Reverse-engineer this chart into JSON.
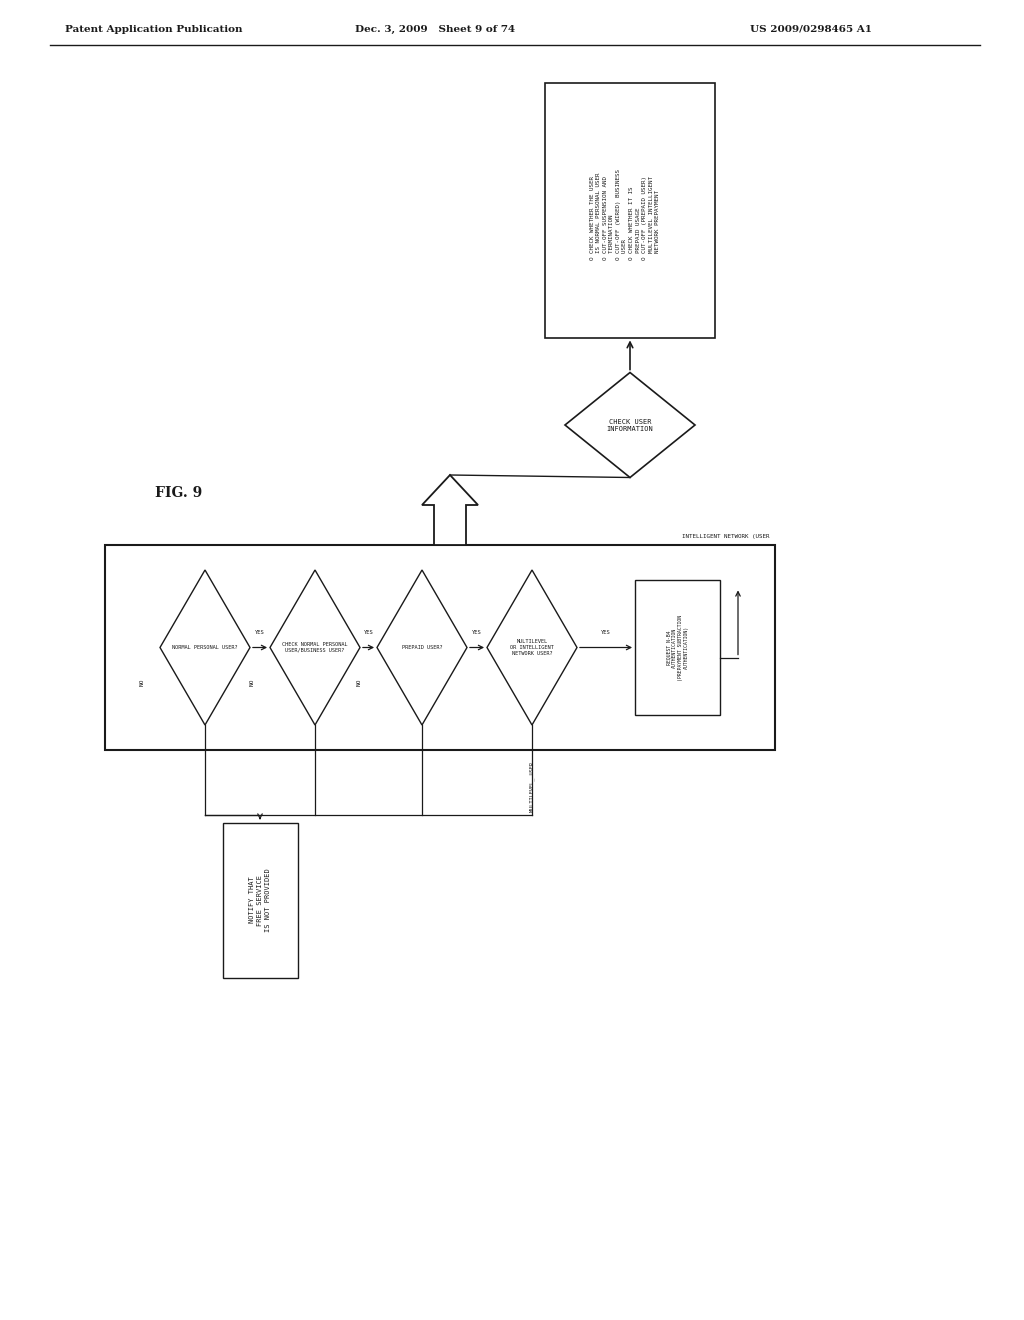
{
  "header_left": "Patent Application Publication",
  "header_mid": "Dec. 3, 2009   Sheet 9 of 74",
  "header_right": "US 2009/0298465 A1",
  "fig_label": "FIG. 9",
  "bg_color": "#ffffff",
  "lc": "#1a1a1a",
  "top_box_text": "O CHECK WHETHER THE USER\n  IS NORMAL PERSONAL USER\nO CUT-OFF SUSPENSION AND\n  TERMINATION\nO CUT-OFF (WIRED) BUSINESS\n  USER\nO CHECK WHETHER IT IS\n  PREPAID USAGE\nO CUT-OFF (PREPAID USER)\n  MULTILEVEL INTELLIGENT\n  NETWORK PREPAYMENT",
  "diamond_main_text": "CHECK USER\nINFORMATION",
  "main_box_label": "INTELLIGENT NETWORK (USER",
  "d1_text": "NORMAL PERSONAL USER?",
  "d2_text": "CHECK NORMAL PERSONAL\nUSER/BUSINESS USER?",
  "d3_text": "PREPAID USER?",
  "d4_text": "MULTILEVEL\nOR INTELLIGENT\nNETWORK USER?",
  "auth_box_text": "REQUEST N-B4\nAUTHENTICATION\n(PREPAYMENT SUBTRACTION\nAUTHENTICATION)",
  "notify_text": "NOTIFY THAT\nFREE SERVICE\nIS NOT PROVIDED"
}
